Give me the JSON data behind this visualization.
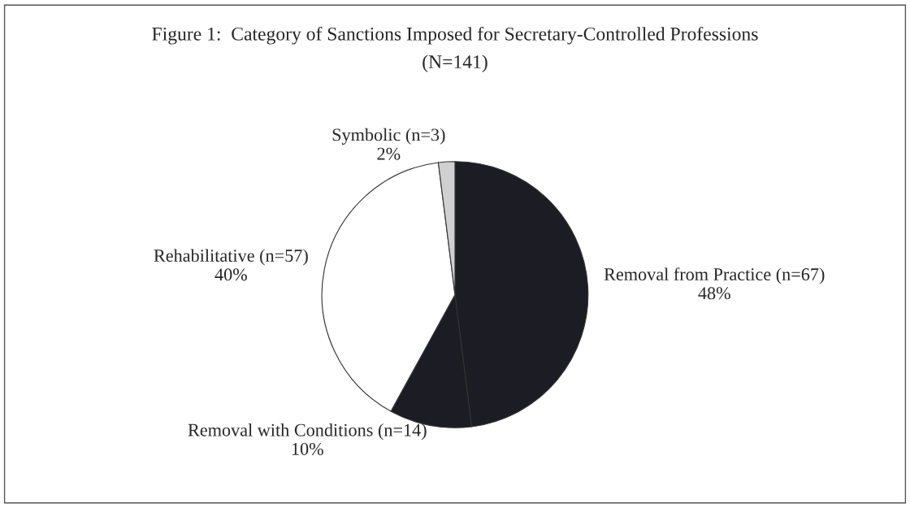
{
  "chart_data": {
    "type": "pie",
    "title": "Figure 1:  Category of Sanctions Imposed for Secretary-Controlled Professions",
    "subtitle": "(N=141)",
    "categories": [
      "Removal from Practice (n=67)",
      "Removal with Conditions (n=14)",
      "Rehabilitative (n=57)",
      "Symbolic (n=3)"
    ],
    "values": [
      48,
      10,
      40,
      2
    ],
    "value_labels": [
      "48%",
      "10%",
      "40%",
      "2%"
    ],
    "colors": [
      "#1c1c24",
      "#1c1c24",
      "#ffffff",
      "#d0d0d0"
    ],
    "legend": false
  }
}
